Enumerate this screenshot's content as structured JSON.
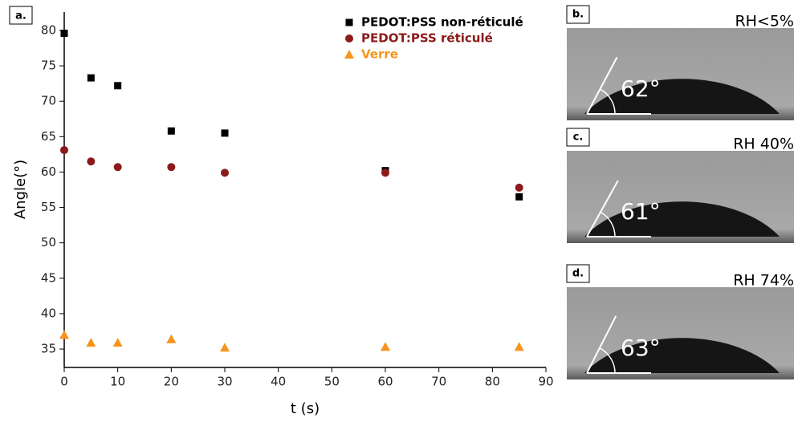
{
  "chart_data": {
    "type": "scatter",
    "label": "a.",
    "xlabel": "t (s)",
    "ylabel": "Angle(°)",
    "x": [
      0,
      5,
      10,
      20,
      30,
      60,
      85
    ],
    "series": [
      {
        "name": "PEDOT:PSS non-réticulé",
        "color": "#000000",
        "marker": "square",
        "values": [
          79.6,
          73.3,
          72.2,
          65.8,
          65.5,
          60.2,
          56.5
        ]
      },
      {
        "name": "PEDOT:PSS réticulé",
        "color": "#8b1a1a",
        "marker": "circle",
        "values": [
          63.1,
          61.5,
          60.7,
          60.7,
          59.9,
          59.9,
          57.8
        ]
      },
      {
        "name": "Verre",
        "color": "#f7941d",
        "marker": "triangle",
        "values": [
          37,
          35.9,
          35.9,
          36.4,
          35.2,
          35.3,
          35.3
        ]
      }
    ],
    "xlim": [
      0,
      90
    ],
    "xticks": [
      0,
      10,
      20,
      30,
      40,
      50,
      60,
      70,
      80,
      90
    ],
    "ylim": [
      32.4,
      82.6
    ],
    "yticks": [
      35,
      40,
      45,
      50,
      55,
      60,
      65,
      70,
      75,
      80
    ]
  },
  "panels": [
    {
      "label": "b.",
      "condition": "RH<5%",
      "angle": "62°"
    },
    {
      "label": "c.",
      "condition": "RH 40%",
      "angle": "61°"
    },
    {
      "label": "d.",
      "condition": "RH 74%",
      "angle": "63°"
    }
  ]
}
